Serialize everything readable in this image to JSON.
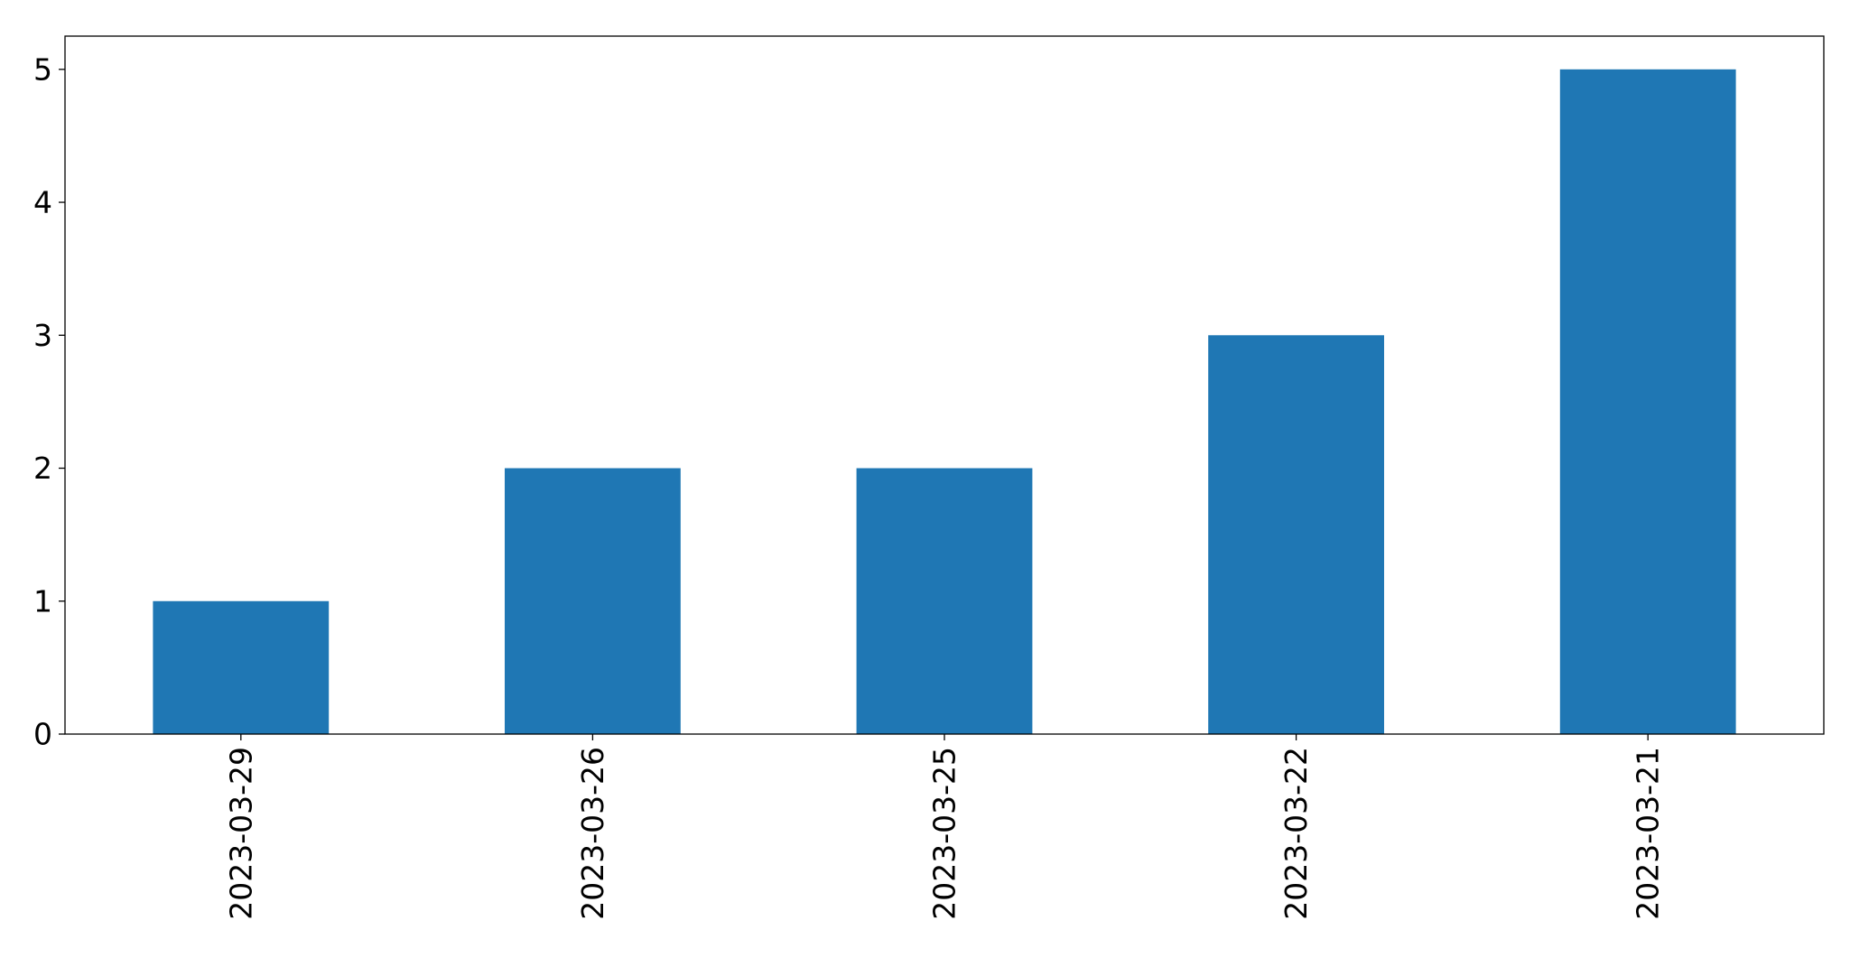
{
  "chart_data": {
    "type": "bar",
    "title": "",
    "xlabel": "",
    "ylabel": "",
    "categories": [
      "2023-03-29",
      "2023-03-26",
      "2023-03-25",
      "2023-03-22",
      "2023-03-21"
    ],
    "values": [
      1,
      2,
      2,
      3,
      5
    ],
    "ylim": [
      0,
      5.25
    ],
    "yticks": [
      0,
      1,
      2,
      3,
      4,
      5
    ],
    "ytick_labels": [
      "0",
      "1",
      "2",
      "3",
      "4",
      "5"
    ],
    "grid": false,
    "legend": "none",
    "bar_color": "#1f77b4"
  }
}
